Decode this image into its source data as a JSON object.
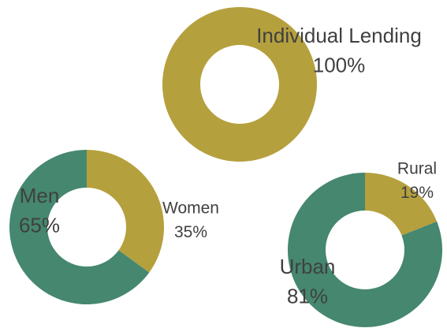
{
  "chart_data": [
    {
      "type": "donut",
      "categories": [
        "Individual Lending"
      ],
      "values": [
        100
      ],
      "value_labels": [
        "100%"
      ],
      "colors": [
        "#b5a03e"
      ]
    },
    {
      "type": "donut",
      "categories": [
        "Women",
        "Men"
      ],
      "values": [
        35,
        65
      ],
      "value_labels": [
        "35%",
        "65%"
      ],
      "colors": [
        "#b5a03e",
        "#45876f"
      ]
    },
    {
      "type": "donut",
      "categories": [
        "Rural",
        "Urban"
      ],
      "values": [
        19,
        81
      ],
      "value_labels": [
        "19%",
        "81%"
      ],
      "colors": [
        "#b5a03e",
        "#45876f"
      ]
    }
  ]
}
